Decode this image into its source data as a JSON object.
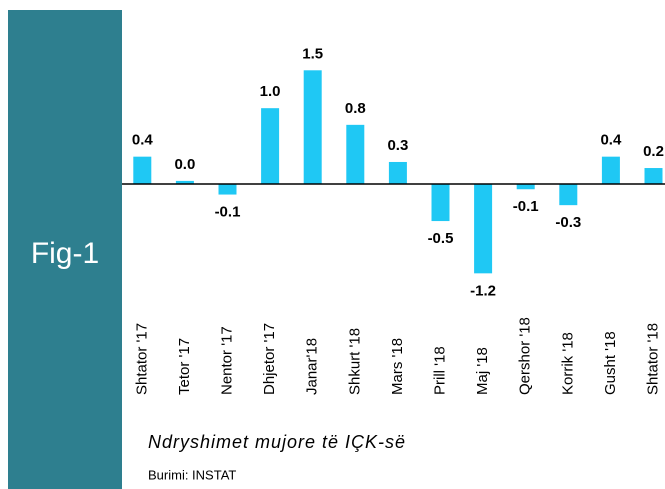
{
  "figure_label": "Fig-1",
  "chart_data": {
    "type": "bar",
    "title": "Ndryshimet mujore të IÇK-së",
    "source": "Burimi: INSTAT",
    "categories": [
      "Shtator '17",
      "Tetor '17",
      "Nentor '17",
      "Dhjetor '17",
      "Janar'18",
      "Shkurt '18",
      "Mars '18",
      "Prill '18",
      "Maj '18",
      "Qershor '18",
      "Korrik '18",
      "Gusht '18",
      "Shtator '18"
    ],
    "values": [
      0.36,
      0.04,
      -0.14,
      1.0,
      1.5,
      0.78,
      0.29,
      -0.49,
      -1.18,
      -0.07,
      -0.28,
      0.36,
      0.21
    ],
    "value_labels": [
      "0.4",
      "0.0",
      "-0.1",
      "1.0",
      "1.5",
      "0.8",
      "0.3",
      "-0.5",
      "-1.2",
      "-0.1",
      "-0.3",
      "0.4",
      "0.2"
    ],
    "color": "#1fc8f4",
    "ylim": [
      -1.4,
      1.9
    ]
  }
}
